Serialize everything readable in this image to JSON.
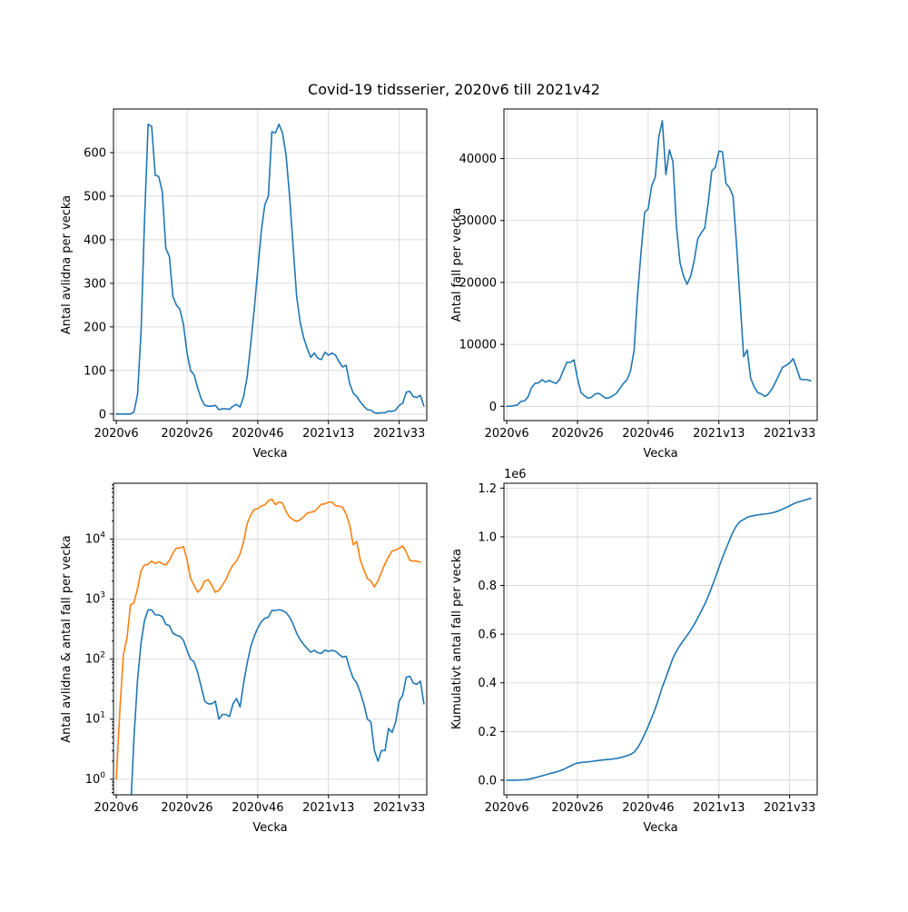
{
  "figure": {
    "title": "Covid-19 tidsserier, 2020v6 till 2021v42",
    "colors": {
      "blue": "#1f77b4",
      "orange": "#ff7f0e",
      "grid": "#d3d3d3"
    }
  },
  "chart_data": [
    {
      "type": "line",
      "title": "",
      "xlabel": "Vecka",
      "ylabel": "Antal avlidna per vecka",
      "x_ticks": [
        "2020v6",
        "2020v26",
        "2020v46",
        "2021v13",
        "2021v33"
      ],
      "y_ticks": [
        "0",
        "100",
        "200",
        "300",
        "400",
        "500",
        "600"
      ],
      "ylim": [
        -15,
        700
      ],
      "yscale": "linear",
      "grid": true,
      "series": [
        {
          "name": "Antal avlidna",
          "color": "#1f77b4",
          "values": [
            0,
            0,
            0,
            0,
            0,
            5,
            45,
            190,
            450,
            665,
            660,
            548,
            545,
            510,
            380,
            362,
            270,
            250,
            240,
            205,
            140,
            100,
            90,
            60,
            35,
            20,
            18,
            18,
            20,
            10,
            12,
            12,
            11,
            18,
            22,
            16,
            40,
            85,
            160,
            240,
            330,
            420,
            480,
            500,
            648,
            645,
            665,
            645,
            595,
            500,
            385,
            270,
            210,
            175,
            150,
            130,
            140,
            128,
            125,
            142,
            135,
            140,
            135,
            120,
            108,
            112,
            70,
            48,
            40,
            28,
            18,
            10,
            9,
            3,
            2,
            3,
            3,
            7,
            6,
            9,
            20,
            25,
            50,
            52,
            40,
            38,
            43,
            18
          ]
        }
      ]
    },
    {
      "type": "line",
      "title": "",
      "xlabel": "Vecka",
      "ylabel": "Antal fall per vecka",
      "x_ticks": [
        "2020v6",
        "2020v26",
        "2020v46",
        "2021v13",
        "2021v33"
      ],
      "y_ticks": [
        "0",
        "10000",
        "20000",
        "30000",
        "40000"
      ],
      "ylim": [
        -2300,
        48000
      ],
      "yscale": "linear",
      "grid": true,
      "series": [
        {
          "name": "Antal fall",
          "color": "#1f77b4",
          "values": [
            1,
            14,
            120,
            220,
            800,
            870,
            1500,
            3000,
            3700,
            3800,
            4300,
            3900,
            4200,
            3900,
            3700,
            4400,
            5800,
            7100,
            7100,
            7500,
            4500,
            2200,
            1700,
            1300,
            1500,
            2000,
            2100,
            1700,
            1300,
            1400,
            1700,
            2100,
            2900,
            3700,
            4300,
            5700,
            9000,
            18000,
            25000,
            31300,
            31900,
            35600,
            37000,
            43500,
            46100,
            37400,
            41400,
            39500,
            29000,
            23200,
            21000,
            19700,
            21000,
            23500,
            27000,
            28000,
            28800,
            33000,
            38000,
            38600,
            41200,
            41100,
            36000,
            35300,
            33900,
            26000,
            17000,
            8000,
            9100,
            4500,
            3100,
            2200,
            2000,
            1600,
            2000,
            2800,
            3900,
            5100,
            6300,
            6600,
            7000,
            7700,
            6100,
            4400,
            4300,
            4300,
            4100
          ]
        }
      ]
    },
    {
      "type": "line",
      "title": "",
      "xlabel": "Vecka",
      "ylabel": "Antal avlidna & antal fall per vecka",
      "x_ticks": [
        "2020v6",
        "2020v26",
        "2020v46",
        "2021v13",
        "2021v33"
      ],
      "y_ticks": [
        {
          "base": "10",
          "exp": "0"
        },
        {
          "base": "10",
          "exp": "1"
        },
        {
          "base": "10",
          "exp": "2"
        },
        {
          "base": "10",
          "exp": "3"
        },
        {
          "base": "10",
          "exp": "4"
        }
      ],
      "ylim": [
        0.55,
        85000
      ],
      "yscale": "log",
      "grid": true,
      "series": [
        {
          "name": "Antal avlidna",
          "color": "#1f77b4",
          "ref": "deaths"
        },
        {
          "name": "Antal fall",
          "color": "#ff7f0e",
          "ref": "cases"
        }
      ]
    },
    {
      "type": "line",
      "title": "",
      "xlabel": "Vecka",
      "ylabel": "Kumulativt antal fall per vecka",
      "offset_text": "1e6",
      "x_ticks": [
        "2020v6",
        "2020v26",
        "2020v46",
        "2021v13",
        "2021v33"
      ],
      "y_ticks": [
        "0.0",
        "0.2",
        "0.4",
        "0.6",
        "0.8",
        "1.0",
        "1.2"
      ],
      "ylim": [
        -0.06,
        1.22
      ],
      "yscale": "linear",
      "grid": true,
      "series": [
        {
          "name": "Kumulativt antal fall",
          "color": "#1f77b4",
          "ref": "cumulative_cases",
          "unit": "1e6"
        }
      ]
    }
  ]
}
